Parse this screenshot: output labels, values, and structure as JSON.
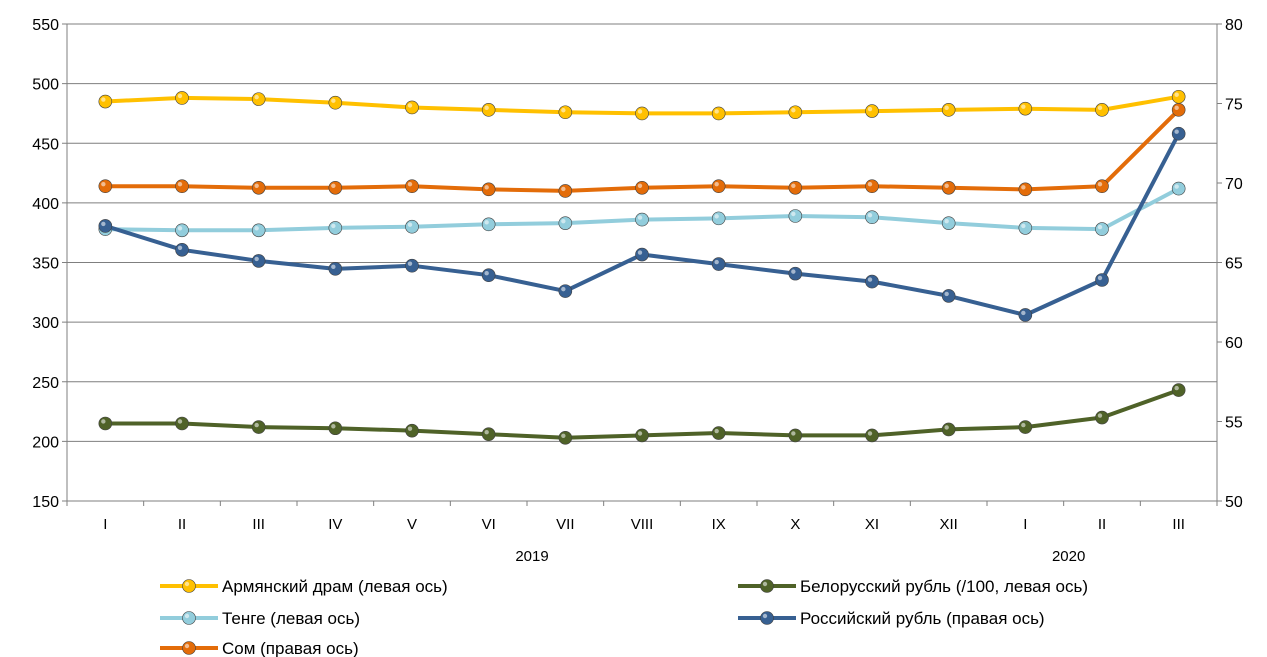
{
  "chart_data": {
    "type": "line",
    "categories": [
      "I",
      "II",
      "III",
      "IV",
      "V",
      "VI",
      "VII",
      "VIII",
      "IX",
      "X",
      "XI",
      "XII",
      "I",
      "II",
      "III"
    ],
    "year_labels": [
      "2019",
      "2020"
    ],
    "left_axis": {
      "ylim": [
        150,
        550
      ],
      "ticks": [
        "150",
        "200",
        "250",
        "300",
        "350",
        "400",
        "450",
        "500",
        "550"
      ]
    },
    "right_axis": {
      "ylim": [
        50,
        80
      ],
      "ticks": [
        "50",
        "55",
        "60",
        "65",
        "70",
        "75",
        "80"
      ]
    },
    "grid": true,
    "legend_position": "bottom",
    "series": [
      {
        "name": "Армянский драм (левая ось)",
        "axis": "left",
        "color": "#FFC000",
        "values": [
          485,
          488,
          487,
          484,
          480,
          478,
          476,
          475,
          475,
          476,
          477,
          478,
          479,
          478,
          489
        ]
      },
      {
        "name": "Белорусский рубль (/100, левая ось)",
        "axis": "left",
        "color": "#4F6228",
        "values": [
          215,
          215,
          212,
          211,
          209,
          206,
          203,
          205,
          207,
          205,
          205,
          210,
          212,
          220,
          243
        ]
      },
      {
        "name": "Тенге (левая ось)",
        "axis": "left",
        "color": "#92CDDC",
        "values": [
          378,
          377,
          377,
          379,
          380,
          382,
          383,
          386,
          387,
          389,
          388,
          383,
          379,
          378,
          412
        ]
      },
      {
        "name": "Российский рубль (правая ось)",
        "axis": "right",
        "color": "#376092",
        "values": [
          67.3,
          65.8,
          65.1,
          64.6,
          64.8,
          64.2,
          63.2,
          65.5,
          64.9,
          64.3,
          63.8,
          62.9,
          61.7,
          63.9,
          73.1
        ]
      },
      {
        "name": "Сом (правая ось)",
        "axis": "right",
        "color": "#E36C09",
        "values": [
          69.8,
          69.8,
          69.7,
          69.7,
          69.8,
          69.6,
          69.5,
          69.7,
          69.8,
          69.7,
          69.8,
          69.7,
          69.6,
          69.8,
          74.6
        ]
      }
    ]
  }
}
